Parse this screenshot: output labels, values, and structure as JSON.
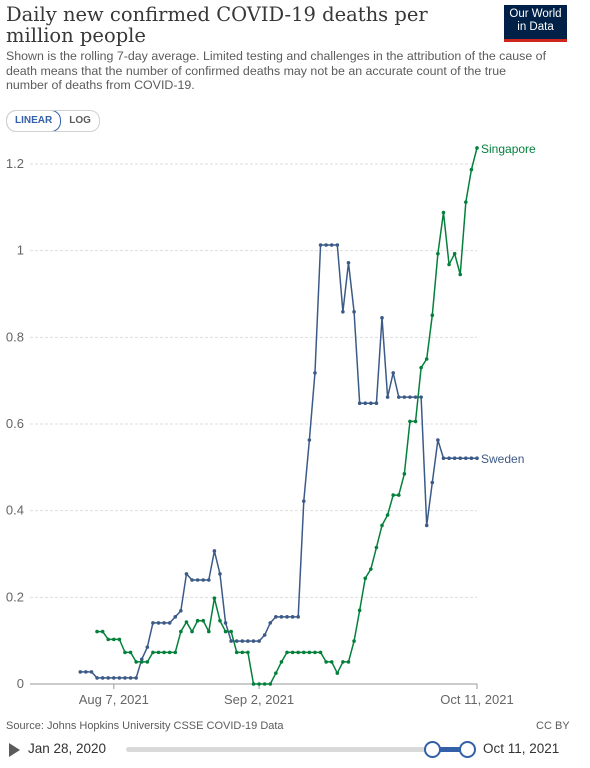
{
  "header": {
    "title": "Daily new confirmed COVID-19 deaths per million people",
    "subtitle": "Shown is the rolling 7-day average. Limited testing and challenges in the attribution of the cause of death means that the number of confirmed deaths may not be an accurate count of the true number of deaths from COVID-19.",
    "logo_line1": "Our World",
    "logo_line2": "in Data"
  },
  "controls": {
    "linear_label": "LINEAR",
    "log_label": "LOG",
    "selected": "LINEAR"
  },
  "footer": {
    "source": "Source: Johns Hopkins University CSSE COVID-19 Data",
    "license": "CC BY"
  },
  "timeline": {
    "start_label": "Jan 28, 2020",
    "end_label": "Oct 11, 2021"
  },
  "colors": {
    "sweden": "#3c5a88",
    "singapore": "#04803c",
    "grid": "#dddddd",
    "axis_text": "#666666"
  },
  "chart_data": {
    "type": "line",
    "x_label_type": "date",
    "x_start": "2021-07-23",
    "x_end": "2021-10-11",
    "x_ticks": [
      {
        "date": "2021-08-07",
        "label": "Aug 7, 2021"
      },
      {
        "date": "2021-09-02",
        "label": "Sep 2, 2021"
      },
      {
        "date": "2021-10-11",
        "label": "Oct 11, 2021"
      }
    ],
    "ylim": [
      0,
      1.25
    ],
    "y_ticks": [
      {
        "value": 0,
        "label": "0"
      },
      {
        "value": 0.2,
        "label": "0.2"
      },
      {
        "value": 0.4,
        "label": "0.4"
      },
      {
        "value": 0.6,
        "label": "0.6"
      },
      {
        "value": 0.8,
        "label": "0.8"
      },
      {
        "value": 1,
        "label": "1"
      },
      {
        "value": 1.2,
        "label": "1.2"
      }
    ],
    "grid": "horizontal",
    "legend": "line-end labels",
    "series": [
      {
        "name": "Sweden",
        "color_key": "sweden",
        "values": [
          0.028,
          0.028,
          0.028,
          0.014,
          0.014,
          0.014,
          0.014,
          0.014,
          0.014,
          0.014,
          0.014,
          0.057,
          0.085,
          0.141,
          0.141,
          0.141,
          0.141,
          0.155,
          0.169,
          0.254,
          0.24,
          0.24,
          0.24,
          0.24,
          0.307,
          0.254,
          0.141,
          0.099,
          0.099,
          0.099,
          0.099,
          0.099,
          0.099,
          0.113,
          0.141,
          0.155,
          0.155,
          0.155,
          0.155,
          0.155,
          0.422,
          0.563,
          0.718,
          1.013,
          1.013,
          1.013,
          1.013,
          0.859,
          0.972,
          0.859,
          0.648,
          0.648,
          0.648,
          0.648,
          0.845,
          0.662,
          0.718,
          0.662,
          0.662,
          0.662,
          0.662,
          0.662,
          0.366,
          0.465,
          0.563,
          0.521,
          0.521,
          0.521,
          0.521,
          0.521,
          0.521,
          0.521
        ]
      },
      {
        "name": "Singapore",
        "color_key": "singapore",
        "values": [
          0.121,
          0.121,
          0.103,
          0.103,
          0.103,
          0.073,
          0.073,
          0.051,
          0.051,
          0.051,
          0.073,
          0.073,
          0.073,
          0.073,
          0.073,
          0.121,
          0.143,
          0.121,
          0.146,
          0.146,
          0.121,
          0.198,
          0.146,
          0.121,
          0.121,
          0.073,
          0.073,
          0.073,
          0.0,
          0.0,
          0.0,
          0.0,
          0.025,
          0.051,
          0.073,
          0.073,
          0.073,
          0.073,
          0.073,
          0.073,
          0.073,
          0.051,
          0.051,
          0.025,
          0.051,
          0.051,
          0.099,
          0.17,
          0.244,
          0.265,
          0.315,
          0.366,
          0.39,
          0.436,
          0.436,
          0.485,
          0.606,
          0.606,
          0.73,
          0.75,
          0.851,
          0.993,
          1.088,
          0.968,
          0.993,
          0.945,
          1.112,
          1.187,
          1.237
        ]
      }
    ]
  }
}
